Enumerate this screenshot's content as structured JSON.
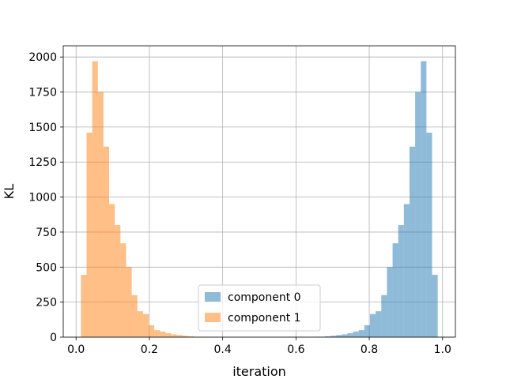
{
  "chart_data": {
    "type": "bar",
    "xlabel": "iteration",
    "ylabel": "KL",
    "xlim": [
      -0.035,
      1.035
    ],
    "ylim": [
      0,
      2080
    ],
    "xticks": [
      0.0,
      0.2,
      0.4,
      0.6,
      0.8,
      1.0
    ],
    "xtick_labels": [
      "0.0",
      "0.2",
      "0.4",
      "0.6",
      "0.8",
      "1.0"
    ],
    "yticks": [
      0,
      250,
      500,
      750,
      1000,
      1250,
      1500,
      1750,
      2000
    ],
    "ytick_labels": [
      "0",
      "250",
      "500",
      "750",
      "1000",
      "1250",
      "1500",
      "1750",
      "2000"
    ],
    "grid": true,
    "legend_position": "lower center",
    "series": [
      {
        "name": "component 0",
        "color": "#1f77b4",
        "alpha": 0.5,
        "bin_edges": [
          0.648,
          0.6634,
          0.6788,
          0.6942,
          0.7096,
          0.725,
          0.7404,
          0.7558,
          0.7712,
          0.7866,
          0.802,
          0.8174,
          0.8328,
          0.8482,
          0.8636,
          0.879,
          0.8944,
          0.9098,
          0.9252,
          0.9406,
          0.956,
          0.9714,
          0.9868
        ],
        "counts": [
          3,
          3,
          6,
          10,
          15,
          20,
          28,
          40,
          50,
          85,
          165,
          185,
          300,
          500,
          670,
          800,
          950,
          1360,
          1750,
          1970,
          1460,
          445
        ]
      },
      {
        "name": "component 1",
        "color": "#ff7f0e",
        "alpha": 0.5,
        "bin_edges": [
          0.0132,
          0.0286,
          0.044,
          0.0594,
          0.0748,
          0.0902,
          0.1056,
          0.121,
          0.1364,
          0.1518,
          0.1672,
          0.1826,
          0.198,
          0.2134,
          0.2288,
          0.2442,
          0.2596,
          0.275,
          0.2904,
          0.3058,
          0.3212,
          0.3366,
          0.352
        ],
        "counts": [
          445,
          1460,
          1970,
          1750,
          1360,
          950,
          800,
          670,
          500,
          300,
          185,
          165,
          85,
          50,
          40,
          28,
          20,
          15,
          10,
          6,
          3,
          3
        ]
      }
    ]
  }
}
